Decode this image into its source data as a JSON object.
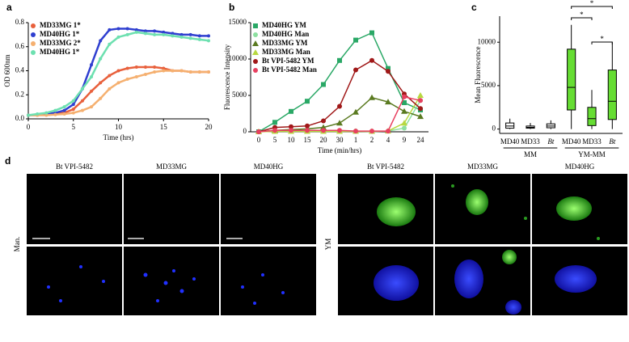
{
  "chart_data": [
    {
      "type": "line",
      "label": "a",
      "ylabel": "OD 600nm",
      "xlabel": "Time (hrs)",
      "x": [
        0,
        1,
        2,
        3,
        4,
        5,
        6,
        7,
        8,
        9,
        10,
        11,
        12,
        13,
        14,
        15,
        16,
        17,
        18,
        19,
        20
      ],
      "xlim": [
        0,
        20
      ],
      "xticks": [
        0,
        5,
        10,
        15,
        20
      ],
      "ylim": [
        0,
        0.8
      ],
      "yticks": [
        {
          "value": 0,
          "label": "0.0"
        },
        0.2,
        0.4,
        0.6,
        0.8
      ],
      "legend": "upper left",
      "series": [
        {
          "name": "MD33MG 1*",
          "color": "#e8603c",
          "values": [
            0.03,
            0.03,
            0.035,
            0.04,
            0.05,
            0.08,
            0.15,
            0.23,
            0.3,
            0.36,
            0.4,
            0.42,
            0.43,
            0.43,
            0.43,
            0.42,
            0.4,
            0.4,
            0.39,
            0.39,
            0.39
          ]
        },
        {
          "name": "MD40HG 1*",
          "color": "#2f3fd0",
          "values": [
            0.03,
            0.035,
            0.04,
            0.05,
            0.07,
            0.12,
            0.25,
            0.45,
            0.65,
            0.74,
            0.75,
            0.75,
            0.74,
            0.73,
            0.73,
            0.72,
            0.71,
            0.7,
            0.7,
            0.69,
            0.69
          ]
        },
        {
          "name": "MD33MG 2*",
          "color": "#f5b070",
          "values": [
            0.03,
            0.03,
            0.03,
            0.035,
            0.04,
            0.05,
            0.07,
            0.1,
            0.17,
            0.25,
            0.3,
            0.33,
            0.35,
            0.37,
            0.39,
            0.4,
            0.4,
            0.4,
            0.39,
            0.39,
            0.39
          ]
        },
        {
          "name": "MD40HG 1*",
          "color": "#6de0b0",
          "values": [
            0.03,
            0.04,
            0.05,
            0.07,
            0.1,
            0.15,
            0.25,
            0.35,
            0.5,
            0.62,
            0.68,
            0.7,
            0.72,
            0.71,
            0.7,
            0.7,
            0.69,
            0.68,
            0.67,
            0.66,
            0.65
          ]
        }
      ]
    },
    {
      "type": "line",
      "label": "b",
      "ylabel": "Fluorescence  Intensity",
      "xlabel": "Time (min/hrs)",
      "categories": [
        "0",
        "5",
        "10",
        "15",
        "20",
        "30",
        "1",
        "2",
        "4",
        "9",
        "24"
      ],
      "ylim": [
        0,
        15000
      ],
      "yticks": [
        0,
        5000,
        10000,
        15000
      ],
      "legend": "upper left",
      "series": [
        {
          "name": "MD40HG YM",
          "color": "#2aa866",
          "marker": "square",
          "values": [
            0,
            1300,
            2800,
            4200,
            6500,
            9800,
            12600,
            13600,
            8700,
            4000,
            3000
          ]
        },
        {
          "name": "MD40HG Man",
          "color": "#8de0a0",
          "marker": "circle",
          "values": [
            0,
            100,
            100,
            100,
            100,
            100,
            100,
            50,
            100,
            500,
            4300
          ]
        },
        {
          "name": "MD33MG YM",
          "color": "#5a7a20",
          "marker": "triangle",
          "values": [
            0,
            200,
            300,
            400,
            600,
            1200,
            2700,
            4700,
            4100,
            2800,
            2100
          ]
        },
        {
          "name": "MD33MG Man",
          "color": "#b8d840",
          "marker": "triangle",
          "values": [
            0,
            50,
            50,
            50,
            50,
            50,
            50,
            50,
            100,
            1200,
            5000
          ]
        },
        {
          "name": "Bt VPI-5482 YM",
          "color": "#a01818",
          "marker": "circle",
          "values": [
            0,
            600,
            700,
            800,
            1500,
            3500,
            8500,
            9800,
            8300,
            5200,
            3200
          ]
        },
        {
          "name": "Bt VPI-5482 Man",
          "color": "#e84060",
          "marker": "circle",
          "values": [
            0,
            200,
            200,
            200,
            200,
            200,
            100,
            100,
            100,
            4800,
            4300
          ]
        }
      ]
    },
    {
      "type": "box",
      "label": "c",
      "ylabel": "Mean Fluorescence",
      "categories": [
        "MD40",
        "MD33",
        "Bt",
        "MD40",
        "MD33",
        "Bt"
      ],
      "groups": [
        "MM",
        "YM-MM"
      ],
      "ylim": [
        -500,
        13000
      ],
      "yticks": [
        0,
        5000,
        10000
      ],
      "colors": [
        "#ffffff",
        "#ffffff",
        "#ffffff",
        "#66dd33",
        "#66dd33",
        "#66dd33"
      ],
      "whisker_low": [
        0,
        0,
        0,
        0,
        0,
        0
      ],
      "q1": [
        100,
        100,
        150,
        2200,
        400,
        1100
      ],
      "median": [
        350,
        200,
        350,
        4800,
        1200,
        3200
      ],
      "q3": [
        700,
        350,
        600,
        9200,
        2500,
        6800
      ],
      "whisker_high": [
        1200,
        700,
        1000,
        12000,
        4500,
        10000
      ],
      "annotations": [
        "*",
        "*",
        "*"
      ]
    }
  ],
  "microscopy": {
    "label": "d",
    "columns": [
      "Bt VPI-5482",
      "MD33MG",
      "MD40HG",
      "Bt VPI-5482",
      "MD33MG",
      "MD40HG"
    ],
    "rows": [
      "Man.",
      "YM"
    ]
  }
}
